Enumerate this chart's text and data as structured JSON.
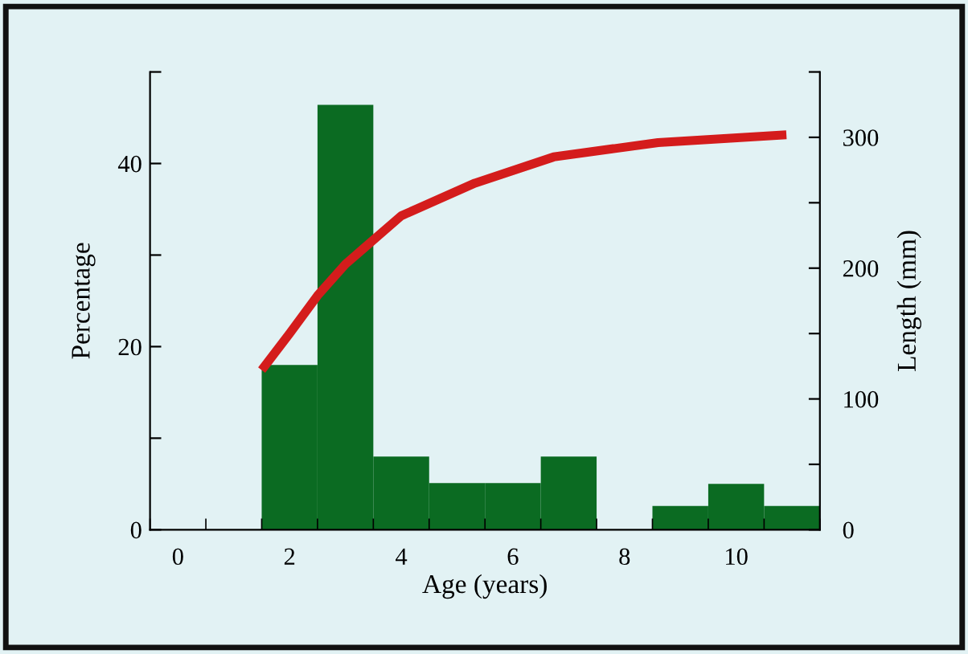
{
  "chart_data": {
    "type": "histogram",
    "xlabel": "Age (years)",
    "ylabel": "Percentage",
    "y2label": "Length (mm)",
    "series": [
      {
        "color": "#0b6b22",
        "bins": [
          1.5,
          2.5,
          3.5,
          4.5,
          5.5,
          6.5,
          7.5,
          8.5,
          9.5,
          10.5,
          11.5
        ],
        "values": [
          18,
          46.4,
          8,
          5.1,
          5.1,
          8,
          0,
          2.6,
          5,
          2.6
        ]
      },
      {
        "type": "line",
        "axis": "y2",
        "color": "#d41c1c",
        "x": [
          1.5,
          2.0,
          2.5,
          3.0,
          3.35,
          4.0,
          5.32,
          6.73,
          8.6,
          10.9
        ],
        "values": [
          122,
          150,
          179,
          203,
          216,
          240,
          265,
          285,
          296,
          302
        ]
      }
    ],
    "xlim": [
      -0.5,
      11.5
    ],
    "xticks": [
      {
        "value": -0.5,
        "label": null
      },
      0,
      {
        "value": 0.5,
        "label": null
      },
      {
        "value": 1.5,
        "label": null
      },
      2,
      {
        "value": 2.5,
        "label": null
      },
      {
        "value": 3.5,
        "label": null
      },
      4,
      {
        "value": 4.5,
        "label": null
      },
      {
        "value": 5.5,
        "label": null
      },
      6,
      {
        "value": 6.5,
        "label": null
      },
      {
        "value": 7.5,
        "label": null
      },
      8,
      {
        "value": 8.5,
        "label": null
      },
      {
        "value": 9.5,
        "label": null
      },
      10,
      {
        "value": 10.5,
        "label": null
      },
      {
        "value": 11.5,
        "label": null
      }
    ],
    "ylim": [
      0,
      50
    ],
    "yticks": [
      0,
      {
        "value": 10,
        "label": null
      },
      20,
      {
        "value": 30,
        "label": null
      },
      40,
      {
        "value": 50,
        "label": null
      }
    ],
    "y2lim": [
      0,
      350
    ],
    "y2ticks": [
      0,
      {
        "value": 50,
        "label": null
      },
      100,
      {
        "value": 150,
        "label": null
      },
      200,
      {
        "value": 250,
        "label": null
      },
      300,
      {
        "value": 350,
        "label": null
      }
    ],
    "grid": false,
    "legend": false
  }
}
